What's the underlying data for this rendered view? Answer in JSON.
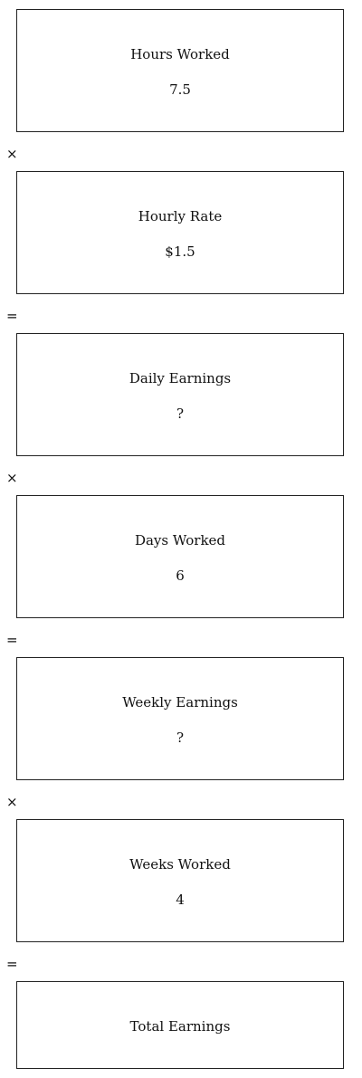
{
  "steps": [
    {
      "label": "Hours Worked",
      "value": "7.5"
    },
    {
      "label": "Hourly Rate",
      "value": "$1.5"
    },
    {
      "label": "Daily Earnings",
      "value": "?"
    },
    {
      "label": "Days Worked",
      "value": "6"
    },
    {
      "label": "Weekly Earnings",
      "value": "?"
    },
    {
      "label": "Weeks Worked",
      "value": "4"
    },
    {
      "label": "Total Earnings",
      "value": ""
    }
  ],
  "operators": [
    "×",
    "=",
    "×",
    "=",
    "×",
    "="
  ]
}
